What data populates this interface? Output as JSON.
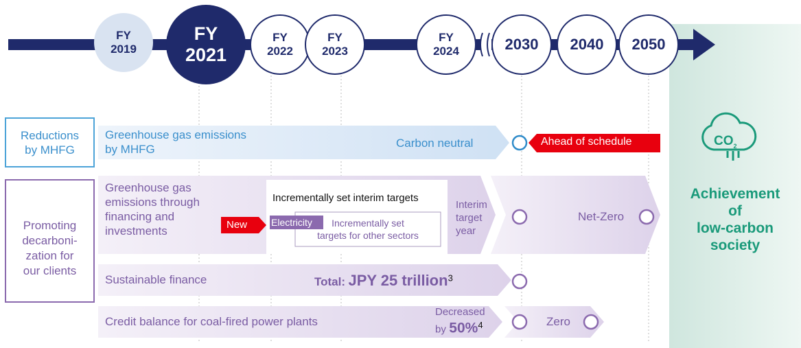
{
  "timeline": [
    {
      "prefix": "FY",
      "year": "2019"
    },
    {
      "prefix": "FY",
      "year": "2021"
    },
    {
      "prefix": "FY",
      "year": "2022"
    },
    {
      "prefix": "FY",
      "year": "2023"
    },
    {
      "prefix": "FY",
      "year": "2024"
    },
    {
      "year": "2030"
    },
    {
      "year": "2040"
    },
    {
      "year": "2050"
    }
  ],
  "scopes": [
    {
      "lines": [
        "Reductions",
        "by MHFG"
      ]
    },
    {
      "lines": [
        "Promoting",
        "decarboni-",
        "zation for",
        "our clients"
      ]
    }
  ],
  "goal": {
    "icon": {
      "text": "CO",
      "sub": "2"
    },
    "lines": [
      "Achievement",
      "of",
      "low-carbon",
      "society"
    ]
  },
  "rows": [
    {
      "label": [
        "Greenhouse gas emissions",
        "by MHFG"
      ],
      "target": "Carbon neutral",
      "badge": "Ahead of schedule"
    },
    {
      "label": [
        "Greenhouse gas",
        "emissions through",
        "financing and",
        "investments"
      ],
      "box_title": "Incrementally set interim targets",
      "new": "New",
      "sector": "Electricity",
      "other": [
        "Incrementally set",
        "targets for other sectors"
      ],
      "interim": [
        "Interim",
        "target",
        "year"
      ],
      "goal": "Net-Zero"
    },
    {
      "label": "Sustainable finance",
      "total": "Total:",
      "amount": "JPY 25 trillion",
      "note": "3"
    },
    {
      "label": "Credit balance for coal-fired power plants",
      "reduction": [
        "Decreased",
        "by"
      ],
      "amount": "50%",
      "note": "4",
      "goal": "Zero"
    }
  ]
}
